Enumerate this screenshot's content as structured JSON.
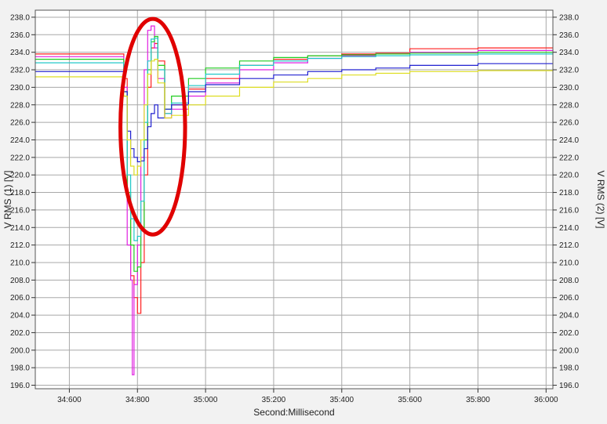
{
  "chart_data": {
    "type": "line",
    "title": "",
    "xlabel": "Second:Millisecond",
    "ylabel_left": "V RMS (1) [V]",
    "ylabel_right": "V RMS (2) [V]",
    "x_unit": "seconds",
    "xlim": [
      34.5,
      36.02
    ],
    "ylim": [
      195.6,
      238.8
    ],
    "y_ticks": [
      196,
      198,
      200,
      202,
      204,
      206,
      208,
      210,
      212,
      214,
      216,
      218,
      220,
      222,
      224,
      226,
      228,
      230,
      232,
      234,
      236,
      238
    ],
    "y_tick_labels": [
      "196.0",
      "198.0",
      "200.0",
      "202.0",
      "204.0",
      "206.0",
      "208.0",
      "210.0",
      "212.0",
      "214.0",
      "216.0",
      "218.0",
      "220.0",
      "222.0",
      "224.0",
      "226.0",
      "228.0",
      "230.0",
      "232.0",
      "234.0",
      "236.0",
      "238.0"
    ],
    "x_ticks": [
      34.6,
      34.8,
      35.0,
      35.2,
      35.4,
      35.6,
      35.8,
      36.0
    ],
    "x_tick_labels": [
      "34:600",
      "34:800",
      "35:000",
      "35:200",
      "35:400",
      "35:600",
      "35:800",
      "36:000"
    ],
    "grid": true,
    "plot_background": "#ffffff",
    "annotation": {
      "type": "ellipse",
      "color": "#e00000",
      "center_x": 34.845,
      "center_y": 225.5,
      "rx": 0.095,
      "ry": 12.3
    },
    "series": [
      {
        "color": "#ff2020",
        "x": [
          34.5,
          34.75,
          34.76,
          34.77,
          34.78,
          34.79,
          34.8,
          34.81,
          34.82,
          34.83,
          34.84,
          34.85,
          34.86,
          34.88,
          34.9,
          34.95,
          35.0,
          35.1,
          35.2,
          35.3,
          35.4,
          35.5,
          35.6,
          35.8,
          36.02
        ],
        "y": [
          233.8,
          233.8,
          231.0,
          217.0,
          208.5,
          206.0,
          204.2,
          210.0,
          220.0,
          230.0,
          234.5,
          235.0,
          233.0,
          227.0,
          228.0,
          229.8,
          231.0,
          232.5,
          233.2,
          233.6,
          233.8,
          233.9,
          234.4,
          234.5,
          234.5
        ]
      },
      {
        "color": "#e020e0",
        "x": [
          34.5,
          34.75,
          34.76,
          34.77,
          34.78,
          34.785,
          34.79,
          34.8,
          34.81,
          34.82,
          34.83,
          34.84,
          34.85,
          34.86,
          34.88,
          34.9,
          34.95,
          35.0,
          35.1,
          35.2,
          35.3,
          35.4,
          35.5,
          35.6,
          35.8,
          36.02
        ],
        "y": [
          233.5,
          233.5,
          230.0,
          212.0,
          208.0,
          197.2,
          207.5,
          212.0,
          222.0,
          232.0,
          236.5,
          237.0,
          234.5,
          231.0,
          226.5,
          227.5,
          229.0,
          230.5,
          232.0,
          232.8,
          233.3,
          233.6,
          233.8,
          234.0,
          234.2,
          234.3
        ]
      },
      {
        "color": "#20cc20",
        "x": [
          34.5,
          34.75,
          34.76,
          34.77,
          34.78,
          34.79,
          34.8,
          34.81,
          34.82,
          34.83,
          34.84,
          34.85,
          34.86,
          34.88,
          34.9,
          34.95,
          35.0,
          35.1,
          35.2,
          35.3,
          35.4,
          35.5,
          35.6,
          35.8,
          36.02
        ],
        "y": [
          233.2,
          233.2,
          229.5,
          218.0,
          212.0,
          209.0,
          209.5,
          214.0,
          224.0,
          232.0,
          235.2,
          235.8,
          232.5,
          227.5,
          229.0,
          231.0,
          232.2,
          233.0,
          233.4,
          233.6,
          233.7,
          233.8,
          233.9,
          234.0,
          234.0
        ]
      },
      {
        "color": "#20c8c8",
        "x": [
          34.5,
          34.75,
          34.76,
          34.77,
          34.78,
          34.79,
          34.8,
          34.81,
          34.82,
          34.83,
          34.84,
          34.85,
          34.86,
          34.88,
          34.9,
          34.95,
          35.0,
          35.1,
          35.2,
          35.3,
          35.4,
          35.5,
          35.6,
          35.8,
          36.02
        ],
        "y": [
          232.8,
          232.8,
          229.0,
          220.0,
          215.0,
          212.5,
          213.0,
          217.0,
          226.0,
          233.0,
          235.5,
          235.6,
          232.0,
          227.0,
          228.2,
          230.2,
          231.5,
          232.5,
          233.0,
          233.3,
          233.5,
          233.6,
          233.7,
          233.8,
          233.9
        ]
      },
      {
        "color": "#2020d0",
        "x": [
          34.5,
          34.75,
          34.76,
          34.77,
          34.78,
          34.79,
          34.8,
          34.81,
          34.82,
          34.83,
          34.84,
          34.85,
          34.86,
          34.88,
          34.9,
          34.95,
          35.0,
          35.1,
          35.2,
          35.3,
          35.4,
          35.5,
          35.6,
          35.8,
          36.02
        ],
        "y": [
          231.8,
          231.8,
          229.5,
          225.0,
          223.0,
          222.0,
          221.5,
          221.6,
          223.0,
          225.5,
          227.0,
          228.0,
          226.5,
          227.5,
          228.0,
          229.5,
          230.3,
          231.0,
          231.4,
          231.8,
          232.0,
          232.2,
          232.5,
          232.7,
          232.7
        ]
      },
      {
        "color": "#dddd20",
        "x": [
          34.5,
          34.75,
          34.76,
          34.77,
          34.78,
          34.79,
          34.8,
          34.81,
          34.82,
          34.83,
          34.84,
          34.85,
          34.86,
          34.88,
          34.9,
          34.95,
          35.0,
          35.1,
          35.2,
          35.3,
          35.4,
          35.5,
          35.6,
          35.8,
          36.02
        ],
        "y": [
          231.2,
          231.2,
          229.0,
          224.0,
          221.0,
          220.0,
          221.0,
          224.0,
          228.0,
          231.5,
          233.0,
          233.2,
          230.5,
          226.5,
          226.8,
          228.0,
          229.0,
          230.0,
          230.6,
          231.0,
          231.4,
          231.6,
          231.8,
          231.9,
          232.0
        ]
      }
    ]
  }
}
